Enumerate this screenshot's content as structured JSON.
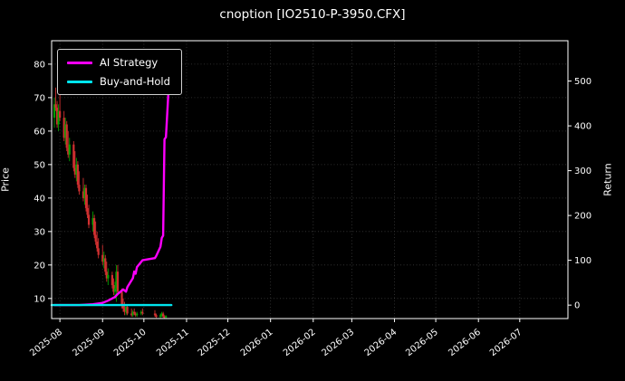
{
  "title": "cnoption [IO2510-P-3950.CFX]",
  "legend": [
    {
      "name": "AI Strategy",
      "color": "#ff00ff"
    },
    {
      "name": "Buy-and-Hold",
      "color": "#00e5ee"
    }
  ],
  "chart_data": {
    "type": "candlestick+line",
    "title": "cnoption [IO2510-P-3950.CFX]",
    "background": "#000000",
    "grid": "dotted",
    "grid_color": "#3a3a3a",
    "spine_color": "#ffffff",
    "text_color": "#ffffff",
    "legend_position": "upper left",
    "x_domain": [
      "2025-07-26",
      "2026-08-05"
    ],
    "x_ticks": [
      "2025-08",
      "2025-09",
      "2025-10",
      "2025-11",
      "2025-12",
      "2026-01",
      "2026-02",
      "2026-03",
      "2026-04",
      "2026-05",
      "2026-06",
      "2026-07"
    ],
    "left_axis": {
      "label": "Price",
      "ticks": [
        10,
        20,
        30,
        40,
        50,
        60,
        70,
        80
      ],
      "ylim": [
        4,
        87
      ]
    },
    "right_axis": {
      "label": "Return",
      "ticks": [
        0,
        100,
        200,
        300,
        400,
        500
      ],
      "ylim": [
        -30,
        590
      ]
    },
    "candle_up_color": "#00a000",
    "candle_down_color": "#d03030",
    "candles": [
      [
        "2025-07-28",
        64,
        70,
        61,
        68
      ],
      [
        "2025-07-29",
        68,
        73,
        66,
        67
      ],
      [
        "2025-07-30",
        67,
        69,
        61,
        62
      ],
      [
        "2025-07-31",
        62,
        68,
        60,
        66
      ],
      [
        "2025-08-01",
        66,
        71,
        63,
        64
      ],
      [
        "2025-08-04",
        64,
        66,
        57,
        58
      ],
      [
        "2025-08-05",
        58,
        64,
        56,
        62
      ],
      [
        "2025-08-06",
        62,
        63,
        54,
        55
      ],
      [
        "2025-08-07",
        55,
        60,
        52,
        53
      ],
      [
        "2025-08-08",
        53,
        58,
        51,
        56
      ],
      [
        "2025-08-11",
        56,
        57,
        48,
        49
      ],
      [
        "2025-08-12",
        49,
        54,
        46,
        47
      ],
      [
        "2025-08-13",
        47,
        52,
        45,
        50
      ],
      [
        "2025-08-14",
        50,
        51,
        43,
        44
      ],
      [
        "2025-08-15",
        44,
        48,
        41,
        42
      ],
      [
        "2025-08-18",
        42,
        46,
        39,
        40
      ],
      [
        "2025-08-19",
        40,
        44,
        38,
        43
      ],
      [
        "2025-08-20",
        43,
        44,
        36,
        37
      ],
      [
        "2025-08-21",
        37,
        41,
        34,
        35
      ],
      [
        "2025-08-22",
        35,
        38,
        31,
        32
      ],
      [
        "2025-08-25",
        32,
        36,
        30,
        34
      ],
      [
        "2025-08-26",
        34,
        35,
        28,
        29
      ],
      [
        "2025-08-27",
        29,
        33,
        26,
        27
      ],
      [
        "2025-08-28",
        27,
        30,
        24,
        25
      ],
      [
        "2025-08-29",
        25,
        28,
        22,
        23
      ],
      [
        "2025-09-01",
        23,
        26,
        20,
        21
      ],
      [
        "2025-09-02",
        21,
        24,
        19,
        22
      ],
      [
        "2025-09-03",
        22,
        23,
        17,
        18
      ],
      [
        "2025-09-04",
        18,
        21,
        15,
        16
      ],
      [
        "2025-09-05",
        16,
        19,
        14,
        17
      ],
      [
        "2025-09-08",
        17,
        18,
        13,
        14
      ],
      [
        "2025-09-09",
        14,
        16,
        11,
        12
      ],
      [
        "2025-09-10",
        12,
        15,
        10,
        13
      ],
      [
        "2025-09-11",
        13,
        20,
        9,
        18
      ],
      [
        "2025-09-12",
        18,
        20,
        11,
        12
      ],
      [
        "2025-09-15",
        12,
        13,
        7,
        8
      ],
      [
        "2025-09-16",
        8,
        10,
        6,
        7
      ],
      [
        "2025-09-17",
        7,
        9,
        5,
        6
      ],
      [
        "2025-09-18",
        6,
        8,
        5,
        7.5
      ],
      [
        "2025-09-19",
        7.5,
        8,
        5,
        5.5
      ],
      [
        "2025-09-22",
        5.5,
        7,
        4.5,
        5
      ],
      [
        "2025-09-23",
        5,
        6.5,
        4.5,
        6
      ],
      [
        "2025-09-24",
        6,
        7,
        5,
        5.5
      ],
      [
        "2025-09-25",
        5.5,
        6,
        4.5,
        5
      ],
      [
        "2025-09-26",
        5,
        6,
        4.5,
        5.5
      ],
      [
        "2025-09-29",
        5.5,
        6.5,
        5,
        6
      ],
      [
        "2025-09-30",
        6,
        7,
        5,
        5.5
      ],
      [
        "2025-10-09",
        5.5,
        6.5,
        4.5,
        5
      ],
      [
        "2025-10-10",
        5,
        5.5,
        4.2,
        4.5
      ],
      [
        "2025-10-13",
        4.5,
        5.5,
        4.1,
        5
      ],
      [
        "2025-10-14",
        5,
        6,
        4.5,
        5.5
      ],
      [
        "2025-10-15",
        5.5,
        6,
        4.2,
        4.6
      ],
      [
        "2025-10-16",
        4.6,
        5,
        4.1,
        4.3
      ],
      [
        "2025-10-17",
        4.3,
        5,
        4.1,
        4.8
      ]
    ],
    "series": [
      {
        "name": "AI Strategy",
        "axis": "right",
        "color": "#ff00ff",
        "points": [
          [
            "2025-07-28",
            0
          ],
          [
            "2025-08-15",
            0
          ],
          [
            "2025-08-25",
            2
          ],
          [
            "2025-09-01",
            5
          ],
          [
            "2025-09-05",
            10
          ],
          [
            "2025-09-10",
            18
          ],
          [
            "2025-09-12",
            25
          ],
          [
            "2025-09-16",
            35
          ],
          [
            "2025-09-18",
            30
          ],
          [
            "2025-09-19",
            40
          ],
          [
            "2025-09-23",
            60
          ],
          [
            "2025-09-24",
            75
          ],
          [
            "2025-09-25",
            70
          ],
          [
            "2025-09-26",
            85
          ],
          [
            "2025-09-30",
            100
          ],
          [
            "2025-10-09",
            105
          ],
          [
            "2025-10-10",
            110
          ],
          [
            "2025-10-13",
            130
          ],
          [
            "2025-10-14",
            150
          ],
          [
            "2025-10-15",
            155
          ],
          [
            "2025-10-16",
            370
          ],
          [
            "2025-10-17",
            375
          ],
          [
            "2025-10-20",
            540
          ],
          [
            "2025-10-21",
            550
          ]
        ]
      },
      {
        "name": "Buy-and-Hold",
        "axis": "right",
        "color": "#00e5ee",
        "points": [
          [
            "2025-07-26",
            0
          ],
          [
            "2025-10-21",
            0
          ]
        ]
      }
    ]
  }
}
